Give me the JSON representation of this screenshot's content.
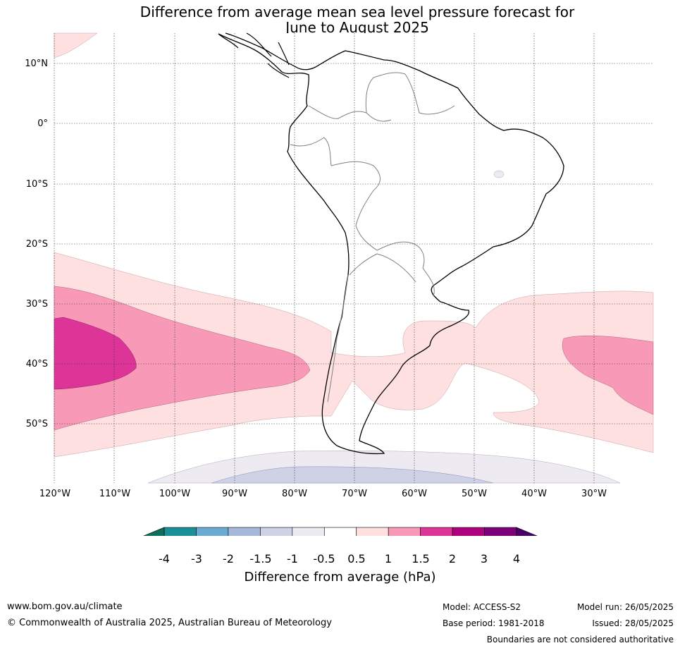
{
  "title_line1": "Difference from average mean sea level pressure forecast for",
  "title_line2": "June to August 2025",
  "lat_labels": [
    "10°N",
    "0°",
    "10°S",
    "20°S",
    "30°S",
    "40°S",
    "50°S"
  ],
  "lon_labels": [
    "120°W",
    "110°W",
    "100°W",
    "90°W",
    "80°W",
    "70°W",
    "60°W",
    "50°W",
    "40°W",
    "30°W"
  ],
  "colorbar": {
    "ticks": [
      "-4",
      "-3",
      "-2",
      "-1.5",
      "-1",
      "-0.5",
      "0.5",
      "1",
      "1.5",
      "2",
      "3",
      "4"
    ],
    "colors": [
      "#1a9096",
      "#6aaad2",
      "#a6b8da",
      "#cfd1e6",
      "#eeeaf1",
      "#ffffff",
      "#fde0df",
      "#f89ab7",
      "#dd3497",
      "#ae017e",
      "#7a0177"
    ],
    "under_color": "#0b6e5b",
    "over_color": "#49006a",
    "label": "Difference from average (hPa)"
  },
  "footer": {
    "url": "www.bom.gov.au/climate",
    "copyright": "© Commonwealth of Australia 2025, Australian Bureau of Meteorology",
    "model": "Model: ACCESS-S2",
    "base_period": "Base period: 1981-2018",
    "model_run": "Model run: 26/05/2025",
    "issued": "Issued: 28/05/2025",
    "disclaimer": "Boundaries are not considered authoritative"
  }
}
